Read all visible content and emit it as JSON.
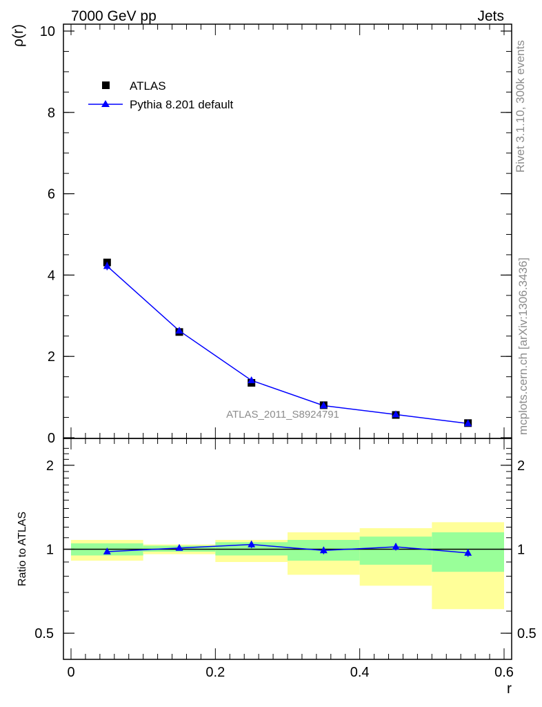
{
  "header": {
    "left": "7000 GeV pp",
    "right": "Jets"
  },
  "side_text": {
    "top": "Rivet 3.1.10,  300k events",
    "bottom": "mcplots.cern.ch [arXiv:1306.3436]"
  },
  "watermark": "ATLAS_2011_S8924791",
  "colors": {
    "data": "#000000",
    "mc": "#0000ff",
    "band_inner": "#99ff99",
    "band_outer": "#ffff99"
  },
  "chart_data": [
    {
      "type": "scatter",
      "panel": "main",
      "ylabel": "ρ(r)",
      "xlim": [
        0,
        0.6
      ],
      "ylim": [
        0,
        10
      ],
      "x_ticks": [
        0,
        0.2,
        0.4,
        0.6
      ],
      "y_ticks": [
        "0",
        "2",
        "4",
        "6",
        "8",
        "10"
      ],
      "legend_position": "top-left",
      "x": [
        0.05,
        0.15,
        0.25,
        0.35,
        0.45,
        0.55
      ],
      "series": [
        {
          "name": "ATLAS",
          "marker": "square",
          "values": [
            4.31,
            2.6,
            1.35,
            0.8,
            0.56,
            0.36
          ]
        },
        {
          "name": "Pythia 8.201 default",
          "marker": "triangle",
          "line": true,
          "values": [
            4.22,
            2.63,
            1.41,
            0.79,
            0.57,
            0.35
          ],
          "err": [
            0.1,
            0.05,
            0.04,
            0.02,
            0.02,
            0.015
          ]
        }
      ]
    },
    {
      "type": "scatter",
      "panel": "ratio",
      "xlabel": "r",
      "ylabel": "Ratio to ATLAS",
      "xlim": [
        0,
        0.6
      ],
      "ylim": [
        0.4,
        2.3
      ],
      "y_scale": "log",
      "x_ticks": [
        "0",
        "0.2",
        "0.4",
        "0.6"
      ],
      "y_ticks": [
        "0.5",
        "1",
        "2"
      ],
      "bins": [
        [
          0,
          0.1
        ],
        [
          0.1,
          0.2
        ],
        [
          0.2,
          0.3
        ],
        [
          0.3,
          0.4
        ],
        [
          0.4,
          0.5
        ],
        [
          0.5,
          0.6
        ]
      ],
      "band_inner": [
        [
          0.95,
          1.05
        ],
        [
          0.98,
          1.03
        ],
        [
          0.95,
          1.06
        ],
        [
          0.91,
          1.08
        ],
        [
          0.88,
          1.11
        ],
        [
          0.83,
          1.15
        ]
      ],
      "band_outer": [
        [
          0.91,
          1.08
        ],
        [
          0.96,
          1.04
        ],
        [
          0.9,
          1.08
        ],
        [
          0.81,
          1.15
        ],
        [
          0.74,
          1.19
        ],
        [
          0.61,
          1.25
        ]
      ],
      "x": [
        0.05,
        0.15,
        0.25,
        0.35,
        0.45,
        0.55
      ],
      "series": [
        {
          "name": "Pythia 8.201 default",
          "values": [
            0.98,
            1.01,
            1.04,
            0.99,
            1.02,
            0.97
          ],
          "err": [
            0.02,
            0.02,
            0.03,
            0.03,
            0.03,
            0.03
          ]
        }
      ]
    }
  ]
}
